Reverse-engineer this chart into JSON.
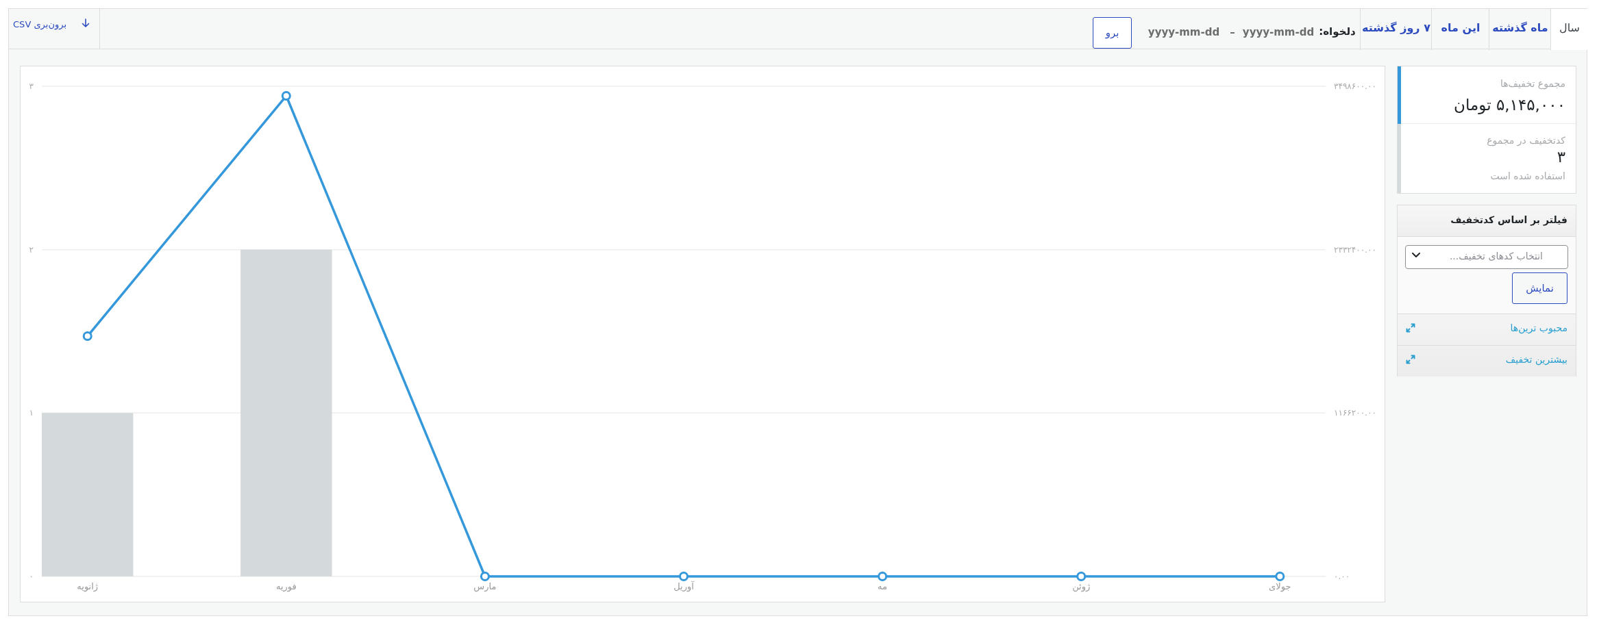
{
  "chart_data": [
    {
      "type": "other",
      "annotations": [
        "سال",
        "ماه گذشته",
        "این ماه",
        "۷ روز گذشته",
        "دلخواه:",
        "yyyy-mm-dd",
        "–",
        "yyyy-mm-dd",
        "برو",
        "برون‌بری CSV"
      ]
    },
    {
      "type": "other",
      "annotations": [
        "مجموع تخفیف‌ها",
        "۵,۱۴۵,۰۰۰ تومان",
        "کدتخفیف در مجموع",
        "۳",
        "استفاده شده است",
        "فیلتر بر اساس کدتخفیف",
        "انتخاب کدهای تخفیف...",
        "نمایش",
        "محبوب ترین‌ها",
        "بیشترین تخفیف"
      ]
    },
    {
      "type": "bar",
      "categories": [
        "ژانویه",
        "فوریه",
        "مارس",
        "آوریل",
        "مه",
        "ژوئن",
        "جولای"
      ],
      "series": [
        {
          "type": "bar",
          "color": "#d4d9dc",
          "values": [
            1,
            2,
            0,
            0,
            0,
            0,
            0
          ]
        },
        {
          "type": "line",
          "axis": "y2",
          "color": "#3498db",
          "values": [
            1715000,
            3430000,
            0,
            0,
            0,
            0,
            0
          ]
        }
      ],
      "ylim": [
        0,
        3
      ],
      "yticks": [
        {
          "value": 0,
          "label": "۰"
        },
        {
          "value": 1,
          "label": "۱"
        },
        {
          "value": 2,
          "label": "۲"
        },
        {
          "value": 3,
          "label": "۳"
        }
      ],
      "y2lim": [
        0,
        3498600
      ],
      "y2ticks": [
        {
          "value": 0,
          "label": "۰.۰۰"
        },
        {
          "value": 1166200,
          "label": "۱۱۶۶۲۰۰.۰۰"
        },
        {
          "value": 2332400,
          "label": "۲۳۳۲۴۰۰.۰۰"
        },
        {
          "value": 3498600,
          "label": "۳۴۹۸۶۰۰.۰۰"
        }
      ],
      "grid": "y",
      "marker": "circle",
      "line_style": "solid"
    }
  ]
}
